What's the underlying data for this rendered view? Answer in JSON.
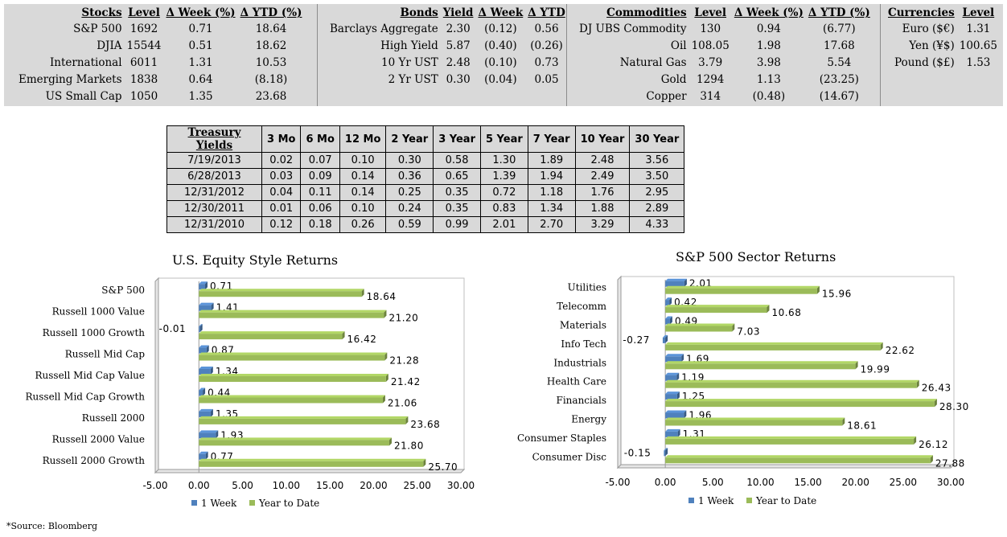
{
  "stocks": {
    "headers": [
      "Stocks",
      "Level",
      "Δ Week (%)",
      "Δ YTD (%)"
    ],
    "rows": [
      [
        "S&P 500",
        "1692",
        "0.71",
        "18.64"
      ],
      [
        "DJIA",
        "15544",
        "0.51",
        "18.62"
      ],
      [
        "International",
        "6011",
        "1.31",
        "10.53"
      ],
      [
        "Emerging Markets",
        "1838",
        "0.64",
        "(8.18)"
      ],
      [
        "US Small Cap",
        "1050",
        "1.35",
        "23.68"
      ]
    ]
  },
  "bonds": {
    "headers": [
      "Bonds",
      "Yield",
      "Δ Week",
      "Δ YTD"
    ],
    "rows": [
      [
        "Barclays Aggregate",
        "2.30",
        "(0.12)",
        "0.56"
      ],
      [
        "High Yield",
        "5.87",
        "(0.40)",
        "(0.26)"
      ],
      [
        "10 Yr UST",
        "2.48",
        "(0.10)",
        "0.73"
      ],
      [
        "2 Yr UST",
        "0.30",
        "(0.04)",
        "0.05"
      ]
    ]
  },
  "commodities": {
    "headers": [
      "Commodities",
      "Level",
      "Δ Week (%)",
      "Δ YTD (%)"
    ],
    "rows": [
      [
        "DJ UBS Commodity",
        "130",
        "0.94",
        "(6.77)"
      ],
      [
        "Oil",
        "108.05",
        "1.98",
        "17.68"
      ],
      [
        "Natural Gas",
        "3.79",
        "3.98",
        "5.54"
      ],
      [
        "Gold",
        "1294",
        "1.13",
        "(23.25)"
      ],
      [
        "Copper",
        "314",
        "(0.48)",
        "(14.67)"
      ]
    ]
  },
  "currencies": {
    "headers": [
      "Currencies",
      "Level"
    ],
    "rows": [
      [
        "Euro ($€)",
        "1.31"
      ],
      [
        "Yen (¥$)",
        "100.65"
      ],
      [
        "Pound ($£)",
        "1.53"
      ]
    ]
  },
  "treasury": {
    "headers": [
      "Treasury Yields",
      "3 Mo",
      "6 Mo",
      "12 Mo",
      "2 Year",
      "3 Year",
      "5 Year",
      "7 Year",
      "10 Year",
      "30 Year"
    ],
    "rows": [
      [
        "7/19/2013",
        "0.02",
        "0.07",
        "0.10",
        "0.30",
        "0.58",
        "1.30",
        "1.89",
        "2.48",
        "3.56"
      ],
      [
        "6/28/2013",
        "0.03",
        "0.09",
        "0.14",
        "0.36",
        "0.65",
        "1.39",
        "1.94",
        "2.49",
        "3.50"
      ],
      [
        "12/31/2012",
        "0.04",
        "0.11",
        "0.14",
        "0.25",
        "0.35",
        "0.72",
        "1.18",
        "1.76",
        "2.95"
      ],
      [
        "12/30/2011",
        "0.01",
        "0.06",
        "0.10",
        "0.24",
        "0.35",
        "0.83",
        "1.34",
        "1.88",
        "2.89"
      ],
      [
        "12/31/2010",
        "0.12",
        "0.18",
        "0.26",
        "0.59",
        "0.99",
        "2.01",
        "2.70",
        "3.29",
        "4.33"
      ]
    ]
  },
  "colors": {
    "panel_bg": "#d9d9d9",
    "week": "#4f81bd",
    "ytd": "#9bbb59"
  },
  "chart_data": [
    {
      "id": "style",
      "type": "bar",
      "orientation": "horizontal",
      "title": "U.S. Equity Style Returns",
      "categories": [
        "S&P 500",
        "Russell 1000 Value",
        "Russell 1000 Growth",
        "Russell Mid Cap",
        "Russell Mid Cap Value",
        "Russell Mid Cap Growth",
        "Russell 2000",
        "Russell 2000 Value",
        "Russell 2000 Growth"
      ],
      "series": [
        {
          "name": "1 Week",
          "color": "#4f81bd",
          "values": [
            0.71,
            1.41,
            -0.01,
            0.87,
            1.34,
            0.44,
            1.35,
            1.93,
            0.77
          ]
        },
        {
          "name": "Year to Date",
          "color": "#9bbb59",
          "values": [
            18.64,
            21.2,
            16.42,
            21.28,
            21.42,
            21.06,
            23.68,
            21.8,
            25.7
          ]
        }
      ],
      "xlim": [
        -5,
        30
      ],
      "ticks": [
        "-5.00",
        "0.00",
        "5.00",
        "10.00",
        "15.00",
        "20.00",
        "25.00",
        "30.00"
      ],
      "legend": "bottom"
    },
    {
      "id": "sector",
      "type": "bar",
      "orientation": "horizontal",
      "title": "S&P 500 Sector Returns",
      "categories": [
        "Utilities",
        "Telecomm",
        "Materials",
        "Info Tech",
        "Industrials",
        "Health Care",
        "Financials",
        "Energy",
        "Consumer Staples",
        "Consumer Disc"
      ],
      "series": [
        {
          "name": "1 Week",
          "color": "#4f81bd",
          "values": [
            2.01,
            0.42,
            0.49,
            -0.27,
            1.69,
            1.19,
            1.25,
            1.96,
            1.31,
            -0.15
          ]
        },
        {
          "name": "Year to Date",
          "color": "#9bbb59",
          "values": [
            15.96,
            10.68,
            7.03,
            22.62,
            19.99,
            26.43,
            28.3,
            18.61,
            26.12,
            27.88
          ]
        }
      ],
      "xlim": [
        -5,
        30
      ],
      "ticks": [
        "-5.00",
        "0.00",
        "5.00",
        "10.00",
        "15.00",
        "20.00",
        "25.00",
        "30.00"
      ],
      "legend": "bottom"
    }
  ],
  "source": "*Source: Bloomberg"
}
